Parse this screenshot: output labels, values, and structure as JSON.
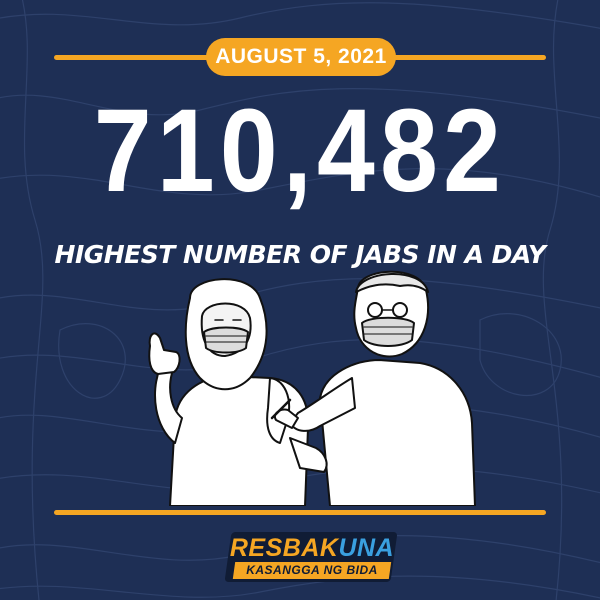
{
  "date": "AUGUST 5, 2021",
  "headline_number": "710,482",
  "subtitle": "HIGHEST NUMBER OF JABS IN A DAY",
  "logo": {
    "brand_part1": "RESBAK",
    "brand_part2": "UNA",
    "tagline": "KASANGGA NG BIDA"
  },
  "colors": {
    "background": "#1e2f55",
    "accent": "#f5a623",
    "text": "#ffffff",
    "logo_blue": "#3aa0e0"
  },
  "illustration": "healthcare-worker-vaccinating-woman"
}
